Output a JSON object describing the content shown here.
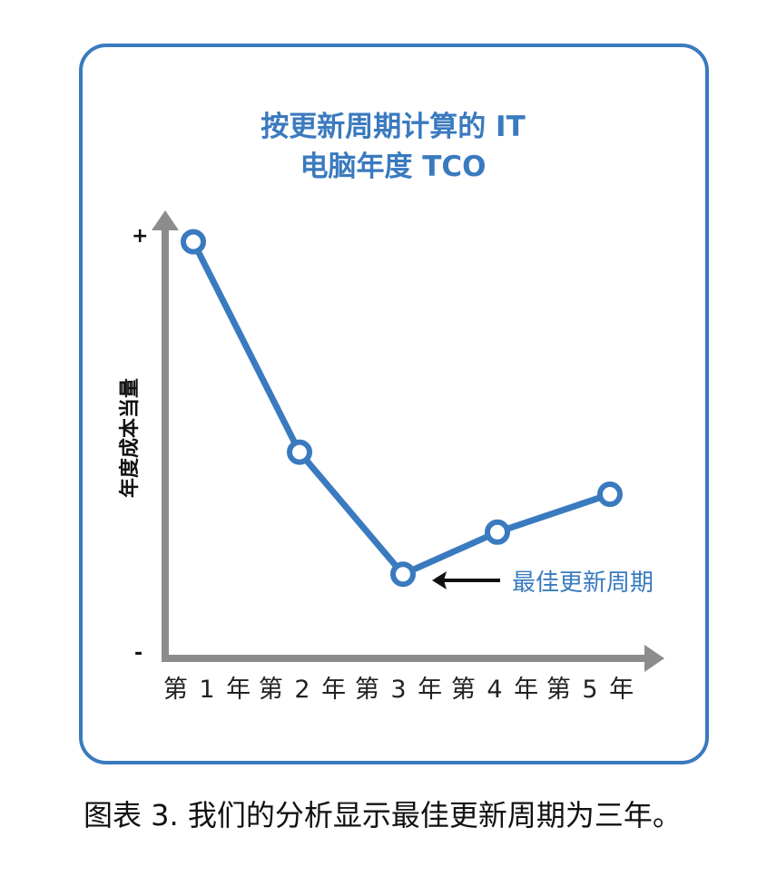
{
  "chart_data": {
    "type": "line",
    "title": "按更新周期计算的 IT 电脑年度 TCO",
    "title_lines": [
      "按更新周期计算的 IT",
      "电脑年度 TCO"
    ],
    "xlabel": "",
    "ylabel": "年度成本当量",
    "y_tick_labels": {
      "top": "+",
      "bottom": "-"
    },
    "categories": [
      "第 1 年",
      "第 2 年",
      "第 3 年",
      "第 4 年",
      "第 5 年"
    ],
    "series": [
      {
        "name": "年度 TCO",
        "values": [
          99,
          49,
          20,
          30,
          39
        ],
        "color": "#3a7abf",
        "marker": "hollow-circle"
      }
    ],
    "ylim": [
      0,
      100
    ],
    "y_scale_note": "relative (unlabeled, + high / - low)",
    "grid": false,
    "legend": null,
    "annotations": [
      {
        "text": "最佳更新周期",
        "points_to": "第 3 年",
        "arrow": "left"
      }
    ]
  },
  "figure": {
    "caption": "图表 3. 我们的分析显示最佳更新周期为三年。"
  },
  "colors": {
    "accent": "#3a7abf",
    "axis": "#8c8c8c",
    "text": "#111111"
  }
}
